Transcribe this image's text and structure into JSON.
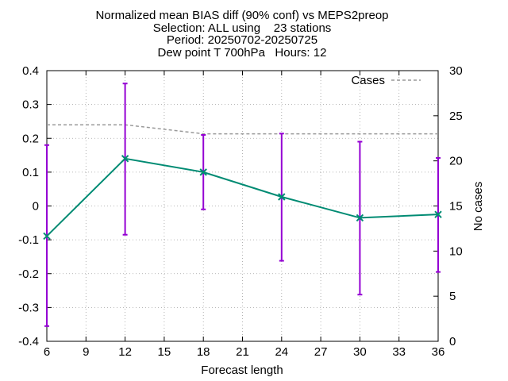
{
  "chart_data": {
    "type": "line",
    "title_lines": [
      "Normalized mean BIAS diff (90% conf) vs MEPS2preop",
      "Selection: ALL using    23 stations",
      "Period: 20250702-20250725",
      "Dew point T 700hPa   Hours: 12"
    ],
    "xlabel": "Forecast length",
    "ylabel": "",
    "y2label": "No cases",
    "xlim": [
      6,
      36
    ],
    "ylim": [
      -0.4,
      0.4
    ],
    "y2lim": [
      0,
      30
    ],
    "x_ticks": [
      6,
      9,
      12,
      15,
      18,
      21,
      24,
      27,
      30,
      33,
      36
    ],
    "y_ticks": [
      -0.4,
      -0.3,
      -0.2,
      -0.1,
      0,
      0.1,
      0.2,
      0.3,
      0.4
    ],
    "y_tick_labels": [
      "-0.4",
      "-0.3",
      "-0.2",
      "-0.1",
      "0",
      "0.1",
      "0.2",
      "0.3",
      "0.4"
    ],
    "y2_ticks": [
      0,
      5,
      10,
      15,
      20,
      25,
      30
    ],
    "grid": true,
    "legend_position": "top-right",
    "series": [
      {
        "axis": "left",
        "color": "#008b73",
        "x": [
          6,
          12,
          18,
          24,
          30,
          36
        ],
        "y": [
          -0.089,
          0.14,
          0.1,
          0.027,
          -0.035,
          -0.025
        ],
        "err_low": [
          -0.355,
          -0.085,
          -0.01,
          -0.162,
          -0.262,
          -0.195
        ],
        "err_high": [
          0.18,
          0.362,
          0.21,
          0.214,
          0.19,
          0.142
        ],
        "err_color": "#9400d3"
      },
      {
        "name": "Cases",
        "axis": "right",
        "color": "#999999",
        "dash": true,
        "x": [
          6,
          12,
          15,
          18,
          24,
          30,
          36
        ],
        "y": [
          24,
          24,
          23.5,
          23,
          23,
          23,
          23
        ]
      }
    ]
  }
}
